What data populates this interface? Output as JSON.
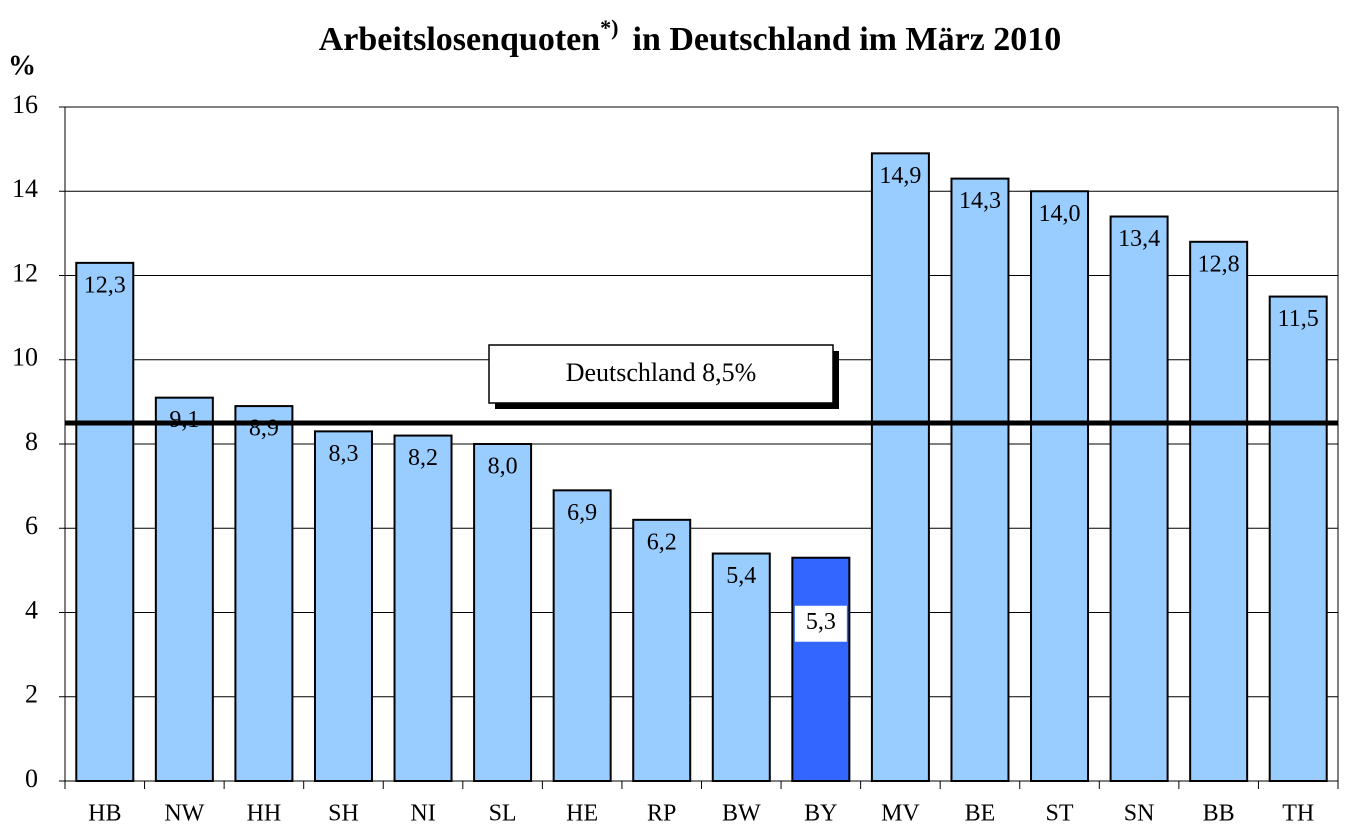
{
  "chart_data": {
    "type": "bar",
    "title": "Arbeitslosenquoten",
    "title_note": "*)",
    "title_rest": "in Deutschland im März 2010",
    "y_label": "%",
    "categories": [
      "HB",
      "NW",
      "HH",
      "SH",
      "NI",
      "SL",
      "HE",
      "RP",
      "BW",
      "BY",
      "MV",
      "BE",
      "ST",
      "SN",
      "BB",
      "TH"
    ],
    "values": [
      12.3,
      9.1,
      8.9,
      8.3,
      8.2,
      8.0,
      6.9,
      6.2,
      5.4,
      5.3,
      14.9,
      14.3,
      14.0,
      13.4,
      12.8,
      11.5
    ],
    "value_labels": [
      "12,3",
      "9,1",
      "8,9",
      "8,3",
      "8,2",
      "8,0",
      "6,9",
      "6,2",
      "5,4",
      "5,3",
      "14,9",
      "14,3",
      "14,0",
      "13,4",
      "12,8",
      "11,5"
    ],
    "colors": [
      "#99ccff",
      "#99ccff",
      "#99ccff",
      "#99ccff",
      "#99ccff",
      "#99ccff",
      "#99ccff",
      "#99ccff",
      "#99ccff",
      "#3366ff",
      "#99ccff",
      "#99ccff",
      "#99ccff",
      "#99ccff",
      "#99ccff",
      "#99ccff"
    ],
    "ylim": [
      0,
      16
    ],
    "yticks": [
      0,
      2,
      4,
      6,
      8,
      10,
      12,
      14,
      16
    ],
    "grid": true,
    "reference_line": {
      "value": 8.5,
      "label": "Deutschland 8,5%"
    }
  }
}
